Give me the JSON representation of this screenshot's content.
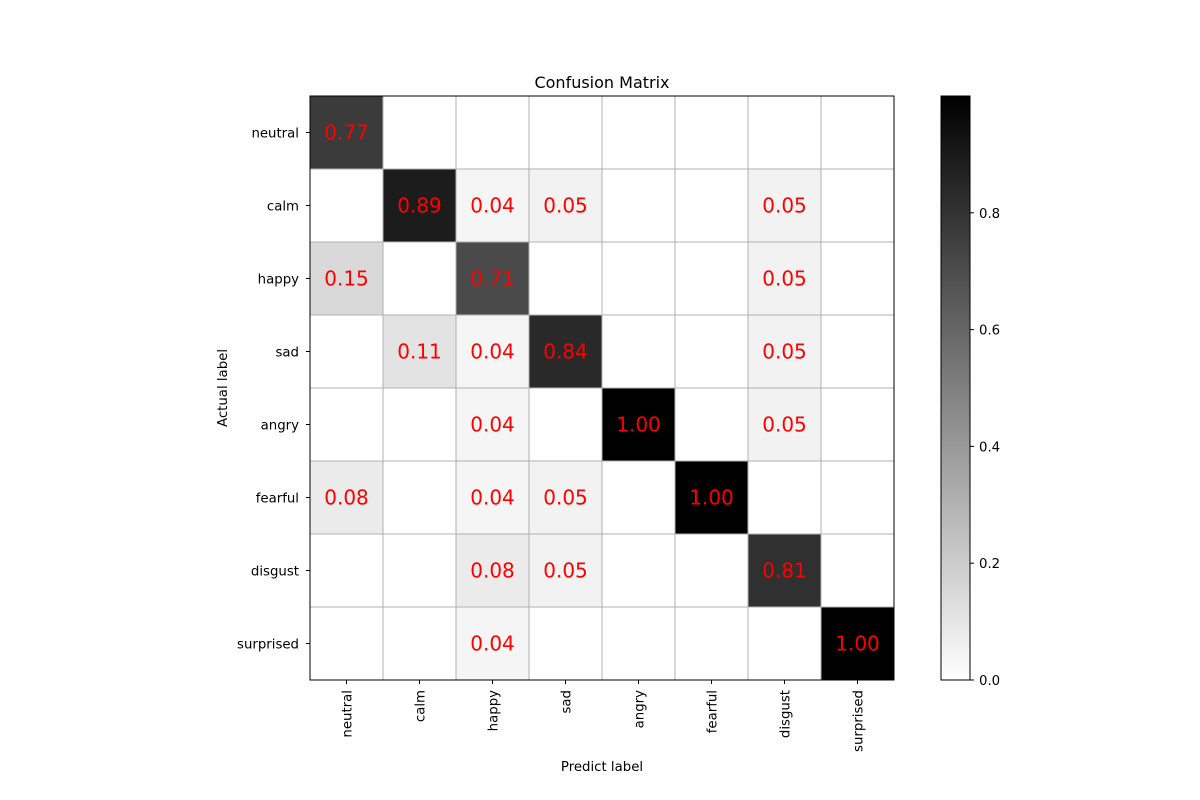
{
  "chart_data": {
    "type": "heatmap",
    "title": "Confusion Matrix",
    "xlabel": "Predict label",
    "ylabel": "Actual label",
    "x_categories": [
      "neutral",
      "calm",
      "happy",
      "sad",
      "angry",
      "fearful",
      "disgust",
      "surprised"
    ],
    "y_categories": [
      "neutral",
      "calm",
      "happy",
      "sad",
      "angry",
      "fearful",
      "disgust",
      "surprised"
    ],
    "matrix": [
      [
        0.77,
        0,
        0,
        0,
        0,
        0,
        0,
        0
      ],
      [
        0,
        0.89,
        0.04,
        0.05,
        0,
        0,
        0.05,
        0
      ],
      [
        0.15,
        0,
        0.71,
        0,
        0,
        0,
        0.05,
        0
      ],
      [
        0,
        0.11,
        0.04,
        0.84,
        0,
        0,
        0.05,
        0
      ],
      [
        0,
        0,
        0.04,
        0,
        1.0,
        0,
        0.05,
        0
      ],
      [
        0.08,
        0,
        0.04,
        0.05,
        0,
        1.0,
        0,
        0
      ],
      [
        0,
        0,
        0.08,
        0.05,
        0,
        0,
        0.81,
        0
      ],
      [
        0,
        0,
        0.04,
        0,
        0,
        0,
        0,
        1.0
      ]
    ],
    "cell_labels": [
      [
        "0.77",
        "",
        "",
        "",
        "",
        "",
        "",
        ""
      ],
      [
        "",
        "0.89",
        "0.04",
        "0.05",
        "",
        "",
        "0.05",
        ""
      ],
      [
        "0.15",
        "",
        "0.71",
        "",
        "",
        "",
        "0.05",
        ""
      ],
      [
        "",
        "0.11",
        "0.04",
        "0.84",
        "",
        "",
        "0.05",
        ""
      ],
      [
        "",
        "",
        "0.04",
        "",
        "1.00",
        "",
        "0.05",
        ""
      ],
      [
        "0.08",
        "",
        "0.04",
        "0.05",
        "",
        "1.00",
        "",
        ""
      ],
      [
        "",
        "",
        "0.08",
        "0.05",
        "",
        "",
        "0.81",
        ""
      ],
      [
        "",
        "",
        "0.04",
        "",
        "",
        "",
        "",
        "1.00"
      ]
    ],
    "colormap": "grayscale (0 = white, 1 = black)",
    "value_range": [
      0,
      1
    ],
    "annotation_color": "#ff0000",
    "grid": true,
    "grid_color": "#b0b0b0",
    "colorbar": {
      "range": [
        0,
        1
      ],
      "ticks": [
        0.0,
        0.2,
        0.4,
        0.6,
        0.8
      ],
      "tick_labels": [
        "0.0",
        "0.2",
        "0.4",
        "0.6",
        "0.8"
      ],
      "placement": "right"
    }
  }
}
